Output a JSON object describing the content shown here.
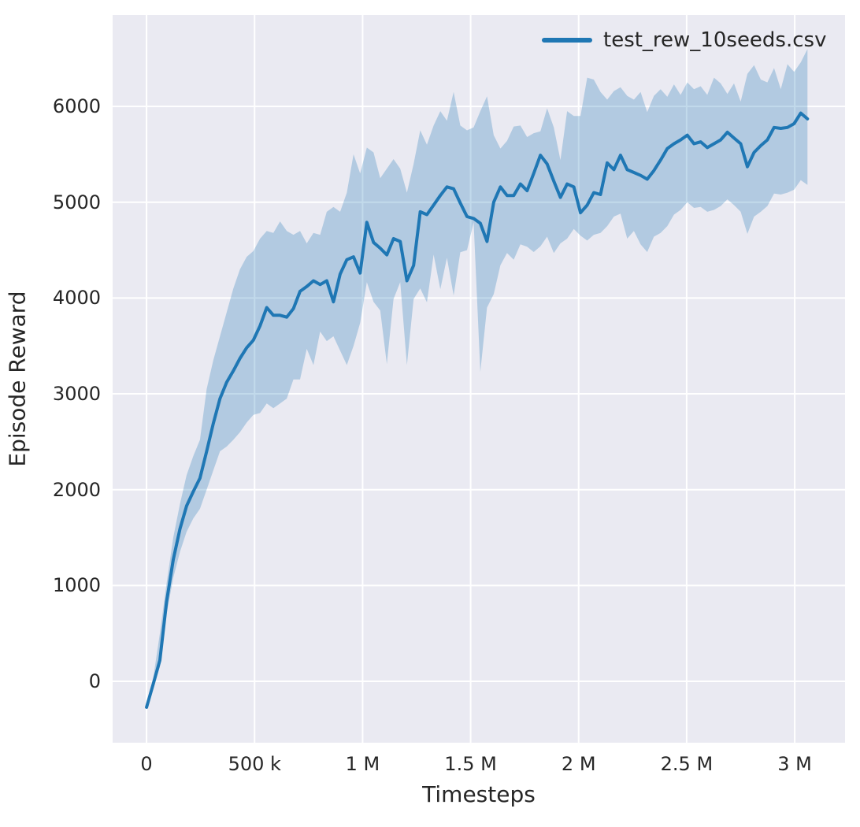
{
  "colors": {
    "line": "#1f77b4",
    "band": "#1f77b4",
    "band_opacity": 0.27,
    "panel_bg": "#eaeaf2",
    "grid": "#ffffff",
    "text": "#262626",
    "figure_bg": "#ffffff"
  },
  "chart_data": {
    "type": "line",
    "title": "",
    "xlabel": "Timesteps",
    "ylabel": "Episode Reward",
    "grid": true,
    "legend_position": "upper right",
    "xlim": [
      -157000,
      3233000
    ],
    "ylim": [
      -641,
      6954
    ],
    "x_ticks": [
      {
        "value": 0,
        "label": "0"
      },
      {
        "value": 500000,
        "label": "500 k"
      },
      {
        "value": 1000000,
        "label": "1 M"
      },
      {
        "value": 1500000,
        "label": "1.5 M"
      },
      {
        "value": 2000000,
        "label": "2 M"
      },
      {
        "value": 2500000,
        "label": "2.5 M"
      },
      {
        "value": 3000000,
        "label": "3 M"
      }
    ],
    "y_ticks": [
      {
        "value": 0,
        "label": "0"
      },
      {
        "value": 1000,
        "label": "1000"
      },
      {
        "value": 2000,
        "label": "2000"
      },
      {
        "value": 3000,
        "label": "3000"
      },
      {
        "value": 4000,
        "label": "4000"
      },
      {
        "value": 5000,
        "label": "5000"
      },
      {
        "value": 6000,
        "label": "6000"
      }
    ],
    "series": [
      {
        "name": "test_rew_10seeds.csv",
        "x": [
          0,
          30900,
          61800,
          92700,
          123600,
          154500,
          185400,
          216300,
          247200,
          278100,
          309000,
          339900,
          370800,
          401700,
          432600,
          463500,
          494400,
          525300,
          556200,
          587100,
          618000,
          648900,
          679800,
          710700,
          741600,
          772500,
          803400,
          834300,
          865200,
          896100,
          927000,
          957900,
          988800,
          1019700,
          1050600,
          1081500,
          1112400,
          1143300,
          1174200,
          1205100,
          1236000,
          1266900,
          1297800,
          1328700,
          1359600,
          1390500,
          1421400,
          1452300,
          1483200,
          1514100,
          1545000,
          1575900,
          1606800,
          1637700,
          1668600,
          1699500,
          1730400,
          1761300,
          1792200,
          1823100,
          1854000,
          1884900,
          1915800,
          1946700,
          1977600,
          2008500,
          2039400,
          2070300,
          2101200,
          2132100,
          2163000,
          2193900,
          2224800,
          2255700,
          2286600,
          2317500,
          2348400,
          2379300,
          2410200,
          2441100,
          2472000,
          2502900,
          2533800,
          2564700,
          2595600,
          2626500,
          2657400,
          2688300,
          2719200,
          2750100,
          2781000,
          2811900,
          2842800,
          2873700,
          2904600,
          2935500,
          2966400,
          2997300,
          3028200,
          3059100
        ],
        "mean": [
          -270,
          -30,
          220,
          830,
          1270,
          1590,
          1830,
          1980,
          2120,
          2400,
          2690,
          2950,
          3120,
          3240,
          3370,
          3480,
          3560,
          3710,
          3900,
          3820,
          3820,
          3800,
          3890,
          4070,
          4120,
          4180,
          4140,
          4180,
          3960,
          4250,
          4400,
          4430,
          4260,
          4790,
          4580,
          4520,
          4450,
          4620,
          4590,
          4180,
          4340,
          4900,
          4870,
          4970,
          5070,
          5160,
          5140,
          4990,
          4850,
          4830,
          4780,
          4590,
          5000,
          5160,
          5070,
          5070,
          5190,
          5120,
          5300,
          5490,
          5400,
          5220,
          5050,
          5190,
          5160,
          4890,
          4970,
          5100,
          5080,
          5410,
          5340,
          5490,
          5340,
          5310,
          5280,
          5240,
          5330,
          5440,
          5560,
          5610,
          5650,
          5700,
          5610,
          5630,
          5570,
          5610,
          5650,
          5730,
          5670,
          5610,
          5370,
          5520,
          5590,
          5650,
          5780,
          5770,
          5780,
          5820,
          5930,
          5870
        ],
        "lower": [
          -270,
          -60,
          150,
          700,
          1080,
          1350,
          1560,
          1700,
          1800,
          2000,
          2200,
          2400,
          2450,
          2520,
          2600,
          2700,
          2780,
          2800,
          2900,
          2850,
          2900,
          2950,
          3150,
          3150,
          3470,
          3300,
          3650,
          3550,
          3600,
          3450,
          3300,
          3500,
          3740,
          4165,
          3960,
          3870,
          3310,
          3990,
          4165,
          3300,
          3990,
          4100,
          3955,
          4453,
          4092,
          4420,
          4027,
          4477,
          4500,
          4790,
          3230,
          3900,
          4040,
          4342,
          4470,
          4400,
          4560,
          4535,
          4480,
          4540,
          4640,
          4470,
          4570,
          4620,
          4720,
          4650,
          4600,
          4660,
          4680,
          4750,
          4850,
          4880,
          4620,
          4700,
          4560,
          4480,
          4640,
          4680,
          4750,
          4870,
          4920,
          5000,
          4940,
          4950,
          4900,
          4920,
          4960,
          5030,
          4970,
          4900,
          4670,
          4850,
          4900,
          4960,
          5090,
          5080,
          5100,
          5130,
          5230,
          5180
        ],
        "upper": [
          -270,
          30,
          500,
          1020,
          1500,
          1850,
          2150,
          2350,
          2520,
          3050,
          3350,
          3600,
          3850,
          4100,
          4300,
          4430,
          4490,
          4620,
          4700,
          4680,
          4800,
          4700,
          4660,
          4700,
          4570,
          4680,
          4660,
          4900,
          4950,
          4900,
          5100,
          5500,
          5300,
          5570,
          5520,
          5250,
          5350,
          5450,
          5350,
          5100,
          5400,
          5750,
          5600,
          5800,
          5950,
          5850,
          6150,
          5800,
          5750,
          5780,
          5950,
          6105,
          5700,
          5560,
          5640,
          5790,
          5800,
          5680,
          5720,
          5740,
          5980,
          5780,
          5440,
          5950,
          5900,
          5900,
          6300,
          6280,
          6150,
          6070,
          6160,
          6200,
          6110,
          6070,
          6150,
          5940,
          6110,
          6180,
          6100,
          6230,
          6120,
          6250,
          6180,
          6210,
          6120,
          6300,
          6240,
          6130,
          6240,
          6050,
          6340,
          6430,
          6280,
          6250,
          6400,
          6180,
          6440,
          6360,
          6460,
          6598
        ]
      }
    ]
  },
  "legend": {
    "label": "test_rew_10seeds.csv"
  }
}
